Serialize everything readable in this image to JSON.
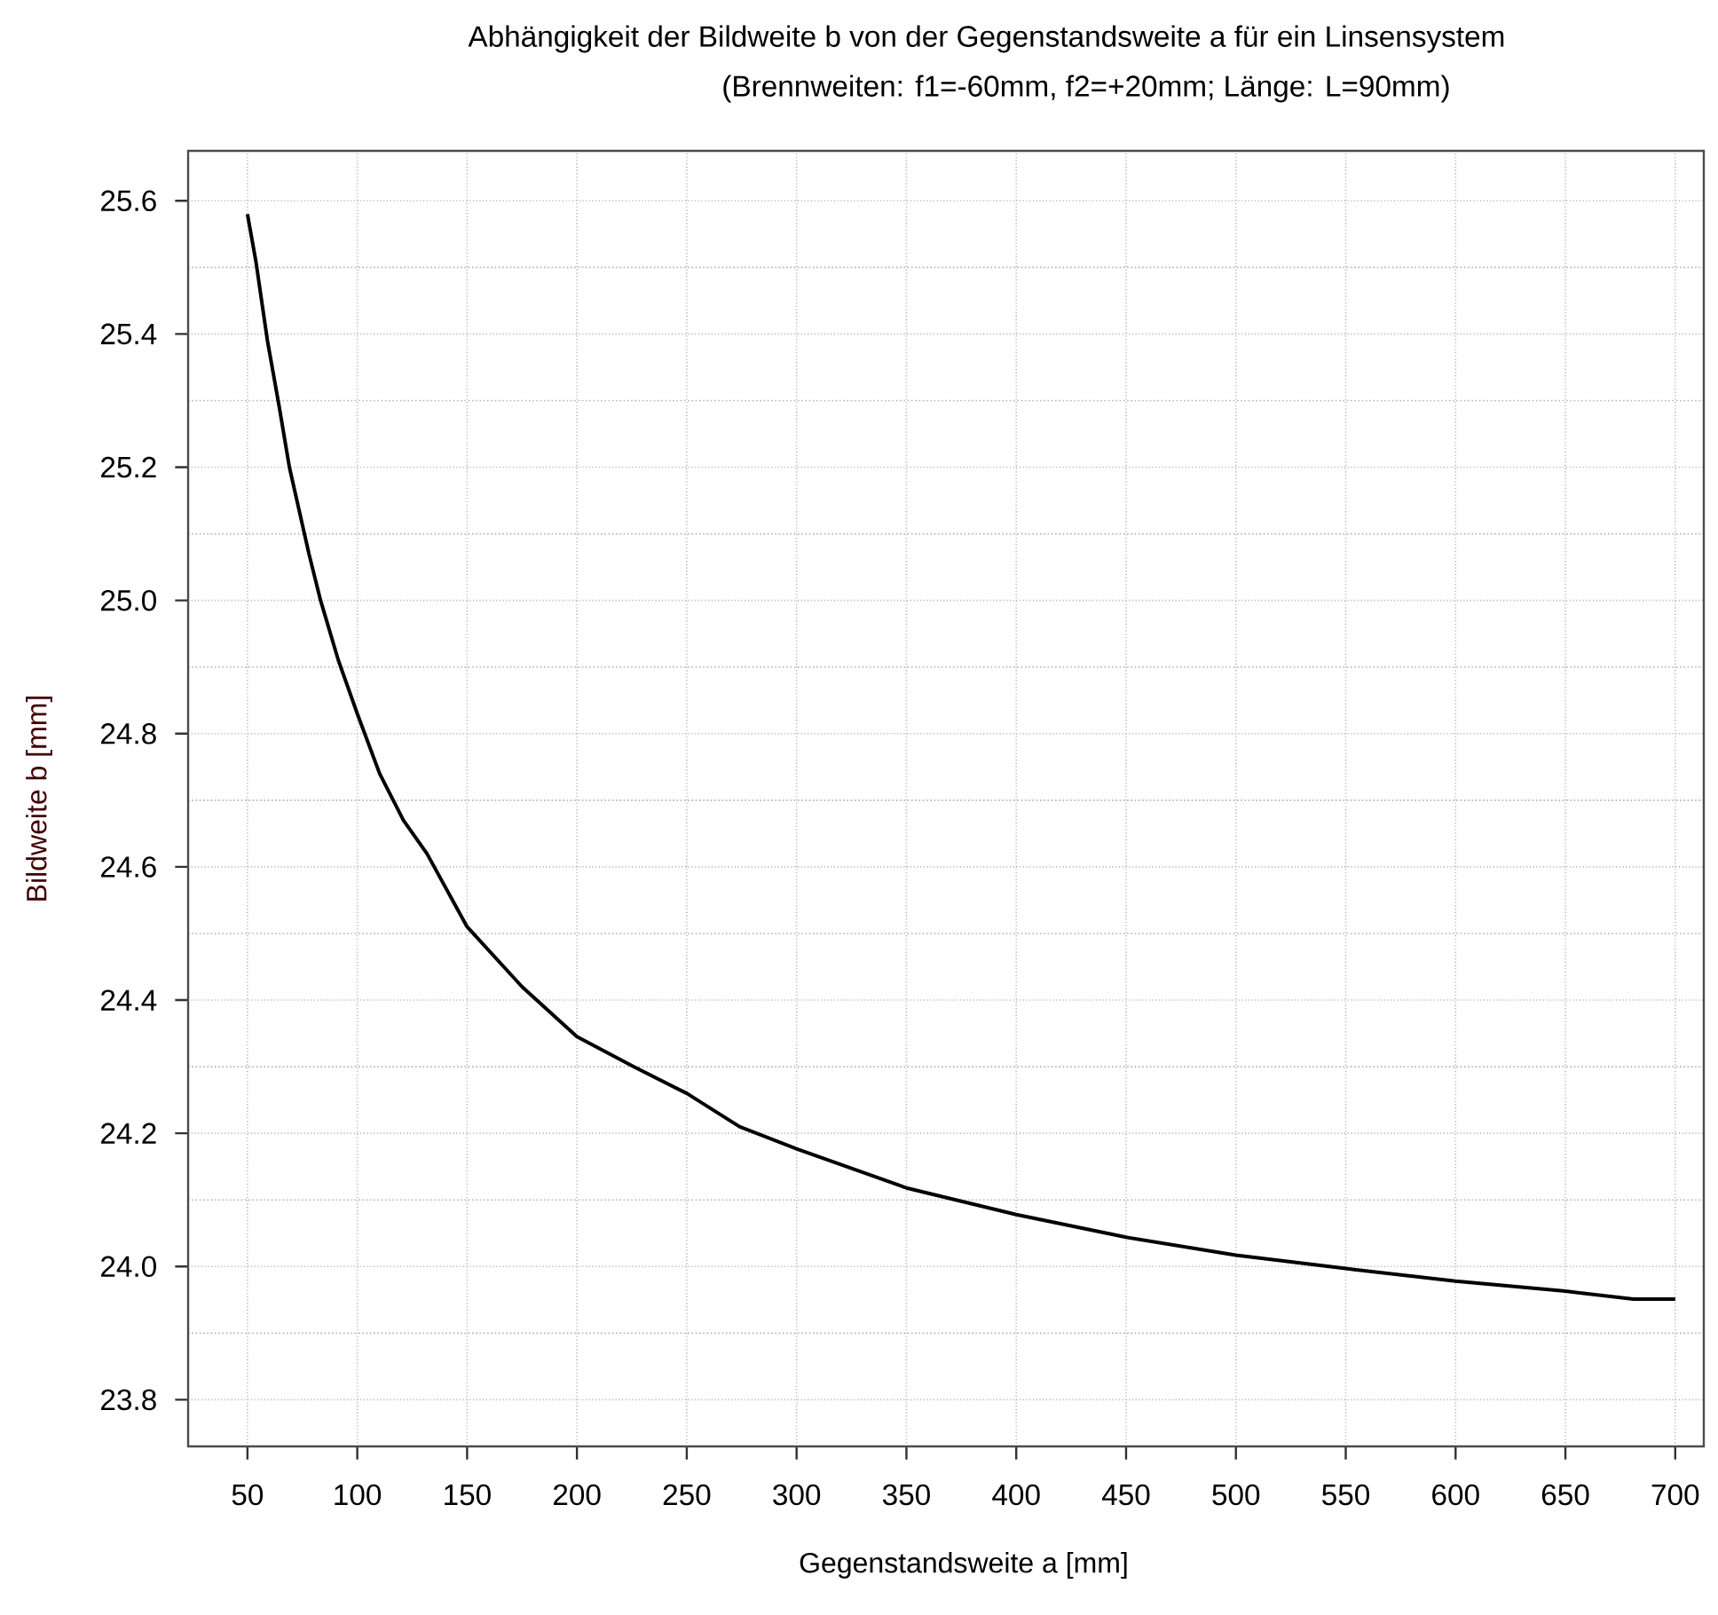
{
  "chart_data": {
    "type": "line",
    "title": "Abhängigkeit der Bildweite b von der Gegenstandsweite a für ein Linsensystem",
    "subtitle": "(Brennweiten: f1=-60mm, f2=+20mm;  Länge: L=90mm)",
    "xlabel": "Gegenstandsweite a [mm]",
    "ylabel": "Bildweite b [mm]",
    "x": [
      50,
      53.8,
      59.1,
      64.5,
      69.1,
      78,
      83.3,
      91.4,
      100,
      110.2,
      121,
      131.7,
      150,
      175,
      200,
      225.8,
      250,
      274,
      300.5,
      350,
      400,
      450,
      500,
      550,
      600,
      650,
      681,
      700
    ],
    "series": [
      {
        "color": "#000000",
        "values": [
          25.58,
          25.51,
          25.39,
          25.29,
          25.2,
          25.07,
          25.0,
          24.91,
          24.83,
          24.74,
          24.67,
          24.62,
          24.51,
          24.42,
          24.345,
          24.3,
          24.26,
          24.21,
          24.176,
          24.118,
          24.078,
          24.044,
          24.017,
          23.997,
          23.978,
          23.963,
          23.951,
          23.951
        ]
      }
    ],
    "xlim": [
      23,
      713
    ],
    "ylim": [
      23.73,
      25.675
    ],
    "xticks": [
      50,
      100,
      150,
      200,
      250,
      300,
      350,
      400,
      450,
      500,
      550,
      600,
      650,
      700
    ],
    "yticks": [
      {
        "value": 23.8,
        "label": "23.8"
      },
      {
        "value": 23.9,
        "label": null
      },
      {
        "value": 24.0,
        "label": "24.0"
      },
      {
        "value": 24.1,
        "label": null
      },
      {
        "value": 24.2,
        "label": "24.2"
      },
      {
        "value": 24.3,
        "label": null
      },
      {
        "value": 24.4,
        "label": "24.4"
      },
      {
        "value": 24.5,
        "label": null
      },
      {
        "value": 24.6,
        "label": "24.6"
      },
      {
        "value": 24.7,
        "label": null
      },
      {
        "value": 24.8,
        "label": "24.8"
      },
      {
        "value": 24.9,
        "label": null
      },
      {
        "value": 25.0,
        "label": "25.0"
      },
      {
        "value": 25.1,
        "label": null
      },
      {
        "value": 25.2,
        "label": "25.2"
      },
      {
        "value": 25.3,
        "label": null
      },
      {
        "value": 25.4,
        "label": "25.4"
      },
      {
        "value": 25.5,
        "label": null
      },
      {
        "value": 25.6,
        "label": "25.6"
      }
    ],
    "grid": true,
    "marker": "none",
    "line_style": "solid"
  }
}
